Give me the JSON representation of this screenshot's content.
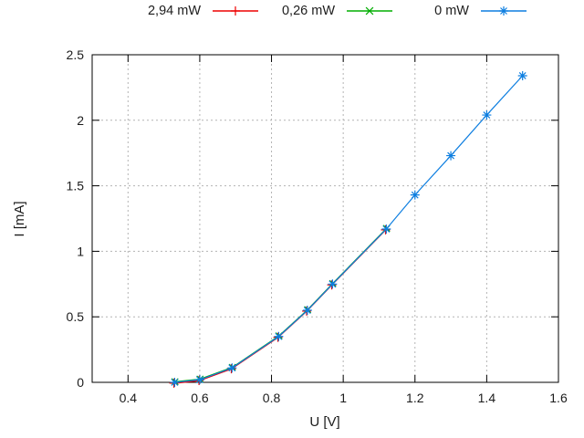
{
  "figure": {
    "background": "#ffffff",
    "text_color": "#1c1c1c",
    "grid_color": "#b4b4b4",
    "border_color": "#000000"
  },
  "legend": {
    "position": "top-center",
    "items": [
      {
        "label": "2,94 mW",
        "color": "#ee0000",
        "marker": "plus"
      },
      {
        "label": "0,26 mW",
        "color": "#00ad00",
        "marker": "cross"
      },
      {
        "label": "0 mW",
        "color": "#0d7ee0",
        "marker": "asterisk"
      }
    ]
  },
  "chart_data": {
    "type": "line",
    "title": "",
    "xlabel": "U [V]",
    "ylabel": "I [mA]",
    "xlim": [
      0.3,
      1.6
    ],
    "ylim": [
      0,
      2.5
    ],
    "grid": true,
    "legend_position": "above",
    "x_tick_values": [
      0.4,
      0.6,
      0.8,
      1.0,
      1.2,
      1.4,
      1.6
    ],
    "x_tick_labels": [
      "0.4",
      "0.6",
      "0.8",
      "1",
      "1.2",
      "1.4",
      "1.6"
    ],
    "y_tick_values": [
      0,
      0.5,
      1.0,
      1.5,
      2.0,
      2.5
    ],
    "y_tick_labels": [
      "0",
      "0.5",
      "1",
      "1.5",
      "2",
      "2.5"
    ],
    "series": [
      {
        "name": "2,94 mW",
        "color": "#ee0000",
        "marker": "plus",
        "x": [
          0.53,
          0.6,
          0.69,
          0.82,
          0.9,
          0.97,
          1.12
        ],
        "y": [
          0.0,
          0.02,
          0.11,
          0.35,
          0.55,
          0.75,
          1.17
        ]
      },
      {
        "name": "0,26 mW",
        "color": "#00ad00",
        "marker": "cross",
        "x": [
          0.53,
          0.6,
          0.69,
          0.82,
          0.9,
          0.97,
          1.12
        ],
        "y": [
          0.0,
          0.02,
          0.11,
          0.35,
          0.55,
          0.75,
          1.17
        ]
      },
      {
        "name": "0 mW",
        "color": "#0d7ee0",
        "marker": "asterisk",
        "x": [
          0.53,
          0.6,
          0.69,
          0.82,
          0.9,
          0.97,
          1.12,
          1.2,
          1.3,
          1.4,
          1.5
        ],
        "y": [
          0.0,
          0.02,
          0.11,
          0.35,
          0.55,
          0.75,
          1.17,
          1.43,
          1.73,
          2.04,
          2.34
        ]
      }
    ]
  }
}
